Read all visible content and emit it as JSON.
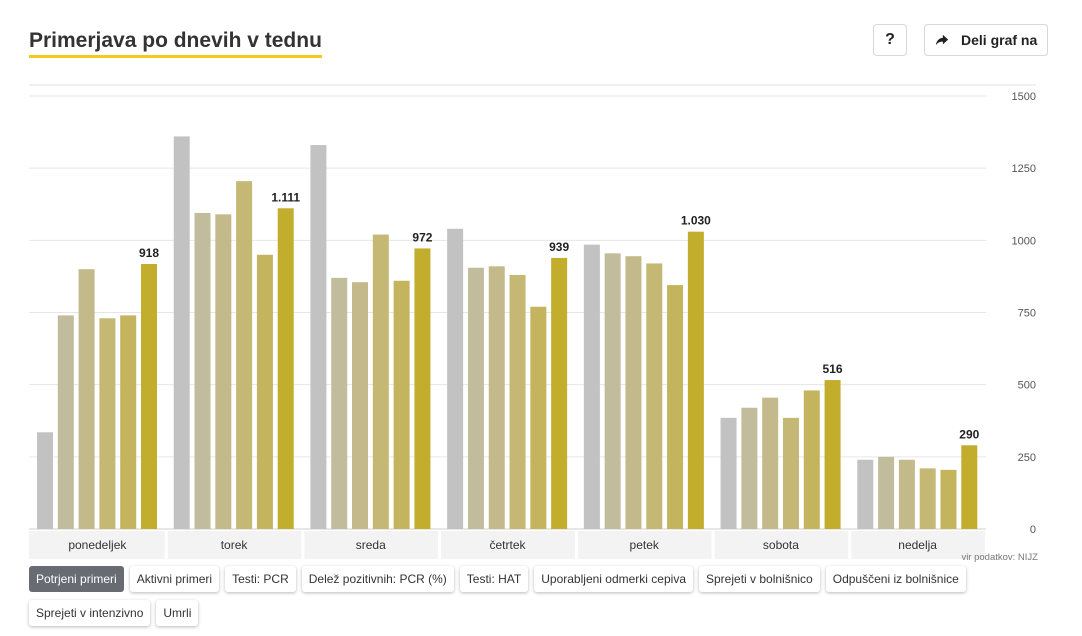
{
  "header": {
    "title": "Primerjava po dnevih v tednu",
    "help_label": "?",
    "share_label": "Deli graf na",
    "share_icon": "share-arrow-icon"
  },
  "source": "vir podatkov: NIJZ",
  "tabs": [
    {
      "label": "Potrjeni primeri",
      "active": true
    },
    {
      "label": "Aktivni primeri",
      "active": false
    },
    {
      "label": "Testi: PCR",
      "active": false
    },
    {
      "label": "Delež pozitivnih: PCR (%)",
      "active": false
    },
    {
      "label": "Testi: HAT",
      "active": false
    },
    {
      "label": "Uporabljeni odmerki cepiva",
      "active": false
    },
    {
      "label": "Sprejeti v bolnišnico",
      "active": false
    },
    {
      "label": "Odpuščeni iz bolnišnice",
      "active": false
    },
    {
      "label": "Sprejeti v intenzivno",
      "active": false
    },
    {
      "label": "Umrli",
      "active": false
    }
  ],
  "chart_data": {
    "type": "bar",
    "categories": [
      "ponedeljek",
      "torek",
      "sreda",
      "četrtek",
      "petek",
      "sobota",
      "nedelja"
    ],
    "series": [
      {
        "color": "#c2c2c2",
        "values": [
          335,
          1360,
          1330,
          1040,
          985,
          385,
          240
        ]
      },
      {
        "color": "#c0bc9c",
        "values": [
          740,
          1095,
          870,
          905,
          955,
          420,
          250
        ]
      },
      {
        "color": "#c3b98b",
        "values": [
          900,
          1090,
          855,
          910,
          945,
          455,
          240
        ]
      },
      {
        "color": "#c5b874",
        "values": [
          730,
          1205,
          1020,
          880,
          920,
          385,
          210
        ]
      },
      {
        "color": "#c5b45e",
        "values": [
          740,
          950,
          860,
          770,
          845,
          480,
          205
        ]
      },
      {
        "color": "#c2ad2c",
        "values": [
          918,
          1111,
          972,
          939,
          1030,
          516,
          290
        ]
      }
    ],
    "value_labels": [
      "918",
      "1.111",
      "972",
      "939",
      "1.030",
      "516",
      "290"
    ],
    "yticks": [
      0,
      250,
      500,
      750,
      1000,
      1250,
      1500
    ],
    "ytick_labels": [
      "0",
      "250",
      "500",
      "750",
      "1000",
      "1250",
      "1500"
    ],
    "ylim": [
      0,
      1500
    ],
    "y_axis_side": "right",
    "grid": true
  }
}
